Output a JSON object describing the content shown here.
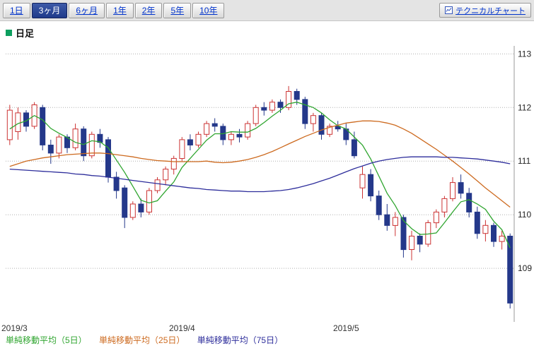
{
  "toolbar": {
    "tabs": [
      {
        "label": "1日",
        "active": false
      },
      {
        "label": "3ヶ月",
        "active": true
      },
      {
        "label": "6ヶ月",
        "active": false
      },
      {
        "label": "1年",
        "active": false
      },
      {
        "label": "2年",
        "active": false
      },
      {
        "label": "5年",
        "active": false
      },
      {
        "label": "10年",
        "active": false
      }
    ],
    "technical_button_label": "テクニカルチャート"
  },
  "header": {
    "title": "日足",
    "bullet_color": "#0d9f5f"
  },
  "chart_data": {
    "type": "candlestick",
    "title": "日足",
    "x_tick_labels": [
      "2019/3",
      "2019/4",
      "2019/5"
    ],
    "x_tick_indices": [
      0,
      21,
      41
    ],
    "ylim": [
      108.0,
      113.15
    ],
    "y_ticks": [
      113,
      112,
      111,
      110,
      109
    ],
    "grid": true,
    "up_color": "#cc3333",
    "down_color": "#24388a",
    "candles": [
      [
        111.4,
        112.05,
        111.3,
        111.95
      ],
      [
        111.55,
        112.0,
        111.4,
        111.9
      ],
      [
        111.9,
        111.95,
        111.55,
        111.65
      ],
      [
        111.65,
        112.1,
        111.6,
        112.05
      ],
      [
        112.0,
        112.05,
        111.2,
        111.3
      ],
      [
        111.3,
        111.4,
        110.95,
        111.15
      ],
      [
        111.15,
        111.5,
        111.05,
        111.45
      ],
      [
        111.45,
        111.5,
        111.15,
        111.25
      ],
      [
        111.25,
        111.7,
        111.2,
        111.6
      ],
      [
        111.6,
        111.65,
        111.0,
        111.1
      ],
      [
        111.1,
        111.55,
        111.05,
        111.5
      ],
      [
        111.5,
        111.6,
        111.25,
        111.35
      ],
      [
        111.4,
        111.45,
        110.6,
        110.7
      ],
      [
        110.7,
        110.8,
        110.3,
        110.45
      ],
      [
        110.5,
        110.55,
        109.75,
        109.95
      ],
      [
        109.95,
        110.25,
        109.9,
        110.2
      ],
      [
        110.2,
        110.3,
        109.95,
        110.05
      ],
      [
        110.05,
        110.5,
        110.0,
        110.45
      ],
      [
        110.45,
        110.7,
        110.4,
        110.65
      ],
      [
        110.65,
        110.9,
        110.55,
        110.85
      ],
      [
        110.85,
        111.1,
        110.75,
        111.05
      ],
      [
        111.05,
        111.45,
        111.0,
        111.4
      ],
      [
        111.4,
        111.5,
        111.2,
        111.3
      ],
      [
        111.3,
        111.55,
        111.25,
        111.5
      ],
      [
        111.5,
        111.75,
        111.45,
        111.7
      ],
      [
        111.7,
        111.8,
        111.55,
        111.65
      ],
      [
        111.65,
        111.7,
        111.3,
        111.4
      ],
      [
        111.4,
        111.55,
        111.3,
        111.5
      ],
      [
        111.5,
        111.6,
        111.35,
        111.45
      ],
      [
        111.45,
        111.75,
        111.4,
        111.7
      ],
      [
        111.7,
        112.05,
        111.65,
        112.0
      ],
      [
        112.0,
        112.1,
        111.85,
        111.95
      ],
      [
        111.95,
        112.15,
        111.9,
        112.1
      ],
      [
        112.1,
        112.15,
        111.9,
        112.0
      ],
      [
        112.0,
        112.4,
        111.95,
        112.3
      ],
      [
        112.3,
        112.35,
        112.05,
        112.15
      ],
      [
        112.15,
        112.2,
        111.6,
        111.7
      ],
      [
        111.7,
        111.9,
        111.55,
        111.85
      ],
      [
        111.85,
        111.9,
        111.4,
        111.5
      ],
      [
        111.5,
        111.7,
        111.45,
        111.65
      ],
      [
        111.65,
        111.75,
        111.55,
        111.6
      ],
      [
        111.6,
        111.7,
        111.3,
        111.4
      ],
      [
        111.4,
        111.55,
        111.05,
        111.1
      ],
      [
        110.5,
        110.9,
        110.3,
        110.75
      ],
      [
        110.75,
        110.85,
        110.25,
        110.35
      ],
      [
        110.35,
        110.45,
        109.9,
        110.0
      ],
      [
        110.0,
        110.2,
        109.7,
        109.8
      ],
      [
        109.8,
        110.05,
        109.6,
        109.95
      ],
      [
        109.95,
        110.0,
        109.2,
        109.35
      ],
      [
        109.35,
        109.7,
        109.15,
        109.6
      ],
      [
        109.6,
        109.65,
        109.3,
        109.45
      ],
      [
        109.45,
        109.9,
        109.4,
        109.85
      ],
      [
        109.85,
        110.1,
        109.75,
        110.05
      ],
      [
        110.05,
        110.35,
        109.95,
        110.3
      ],
      [
        110.3,
        110.7,
        110.25,
        110.6
      ],
      [
        110.6,
        110.75,
        110.3,
        110.4
      ],
      [
        110.4,
        110.5,
        109.95,
        110.05
      ],
      [
        110.05,
        110.15,
        109.55,
        109.65
      ],
      [
        109.65,
        109.9,
        109.5,
        109.8
      ],
      [
        109.8,
        109.85,
        109.4,
        109.5
      ],
      [
        109.5,
        109.7,
        109.35,
        109.6
      ],
      [
        109.6,
        109.65,
        108.25,
        108.35
      ]
    ],
    "series": [
      {
        "id": "sma5-line",
        "name": "単純移動平均（5日）",
        "color": "#2fa52f",
        "values": [
          111.6,
          111.7,
          111.75,
          111.85,
          111.77,
          111.61,
          111.52,
          111.44,
          111.35,
          111.31,
          111.38,
          111.36,
          111.25,
          111.02,
          110.79,
          110.53,
          110.27,
          110.22,
          110.26,
          110.44,
          110.61,
          110.88,
          111.05,
          111.22,
          111.39,
          111.51,
          111.51,
          111.55,
          111.54,
          111.54,
          111.61,
          111.72,
          111.84,
          111.95,
          112.07,
          112.1,
          112.05,
          112.0,
          111.9,
          111.77,
          111.66,
          111.6,
          111.45,
          111.3,
          111.04,
          110.72,
          110.4,
          110.17,
          109.89,
          109.74,
          109.63,
          109.64,
          109.66,
          109.85,
          110.05,
          110.24,
          110.28,
          110.2,
          110.1,
          109.88,
          109.72,
          109.38
        ]
      },
      {
        "id": "sma25-line",
        "name": "単純移動平均（25日）",
        "color": "#cd6a1f",
        "values": [
          110.9,
          110.95,
          111.0,
          111.03,
          111.06,
          111.08,
          111.1,
          111.12,
          111.13,
          111.14,
          111.15,
          111.15,
          111.14,
          111.12,
          111.1,
          111.08,
          111.05,
          111.03,
          111.01,
          111.0,
          110.99,
          110.99,
          110.99,
          110.99,
          111.0,
          110.98,
          110.97,
          110.98,
          111.0,
          111.03,
          111.07,
          111.12,
          111.18,
          111.25,
          111.32,
          111.39,
          111.46,
          111.52,
          111.58,
          111.63,
          111.67,
          111.71,
          111.73,
          111.75,
          111.75,
          111.74,
          111.71,
          111.67,
          111.6,
          111.52,
          111.42,
          111.32,
          111.22,
          111.11,
          111.0,
          110.88,
          110.76,
          110.63,
          110.5,
          110.38,
          110.26,
          110.14
        ]
      },
      {
        "id": "sma75-line",
        "name": "単純移動平均（75日）",
        "color": "#2d2d9b",
        "values": [
          110.85,
          110.84,
          110.83,
          110.82,
          110.81,
          110.8,
          110.79,
          110.78,
          110.76,
          110.75,
          110.73,
          110.72,
          110.7,
          110.68,
          110.66,
          110.64,
          110.62,
          110.6,
          110.58,
          110.56,
          110.54,
          110.52,
          110.5,
          110.49,
          110.47,
          110.46,
          110.45,
          110.44,
          110.44,
          110.43,
          110.43,
          110.43,
          110.44,
          110.45,
          110.47,
          110.5,
          110.54,
          110.58,
          110.63,
          110.68,
          110.74,
          110.8,
          110.86,
          110.91,
          110.96,
          111.0,
          111.03,
          111.05,
          111.07,
          111.08,
          111.08,
          111.08,
          111.08,
          111.07,
          111.07,
          111.06,
          111.05,
          111.04,
          111.02,
          111.0,
          110.98,
          110.95
        ]
      }
    ]
  }
}
